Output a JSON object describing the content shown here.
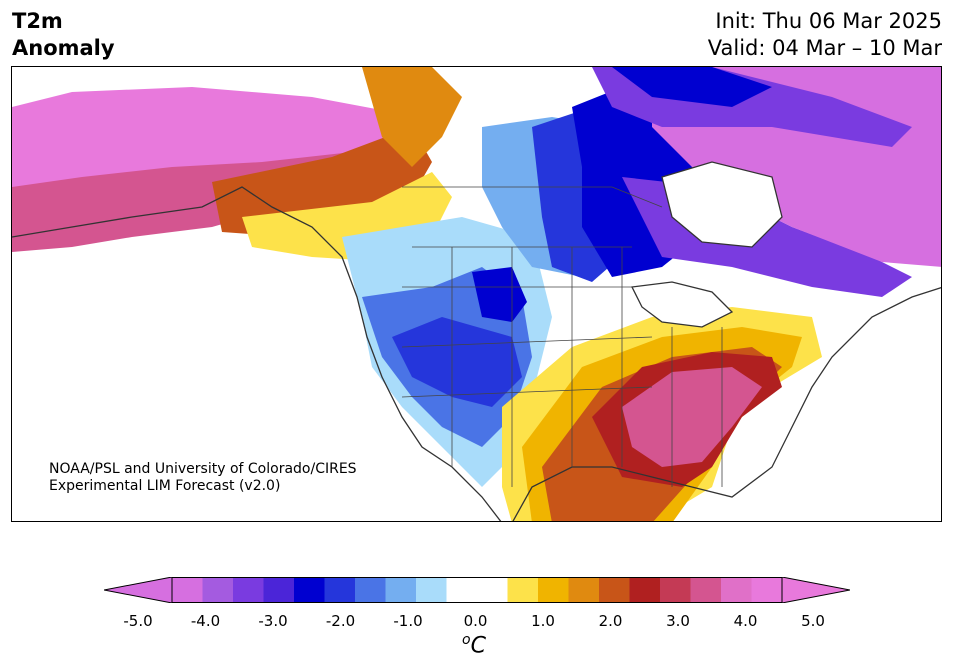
{
  "header": {
    "title_line1": "T2m",
    "title_line2": "Anomaly",
    "init_text": "Init: Thu 06 Mar 2025",
    "valid_text": "Valid: 04 Mar – 10 Mar"
  },
  "map": {
    "region": "North America",
    "credit_line1": "NOAA/PSL and University of Colorado/CIRES",
    "credit_line2": "Experimental LIM Forecast (v2.0)"
  },
  "colorbar": {
    "unit_base": "C",
    "unit_sup": "o",
    "tick_labels": [
      "-5.0",
      "-4.0",
      "-3.0",
      "-2.0",
      "-1.0",
      "0.0",
      "1.0",
      "2.0",
      "3.0",
      "4.0",
      "5.0"
    ],
    "colors": [
      "#d66fe0",
      "#a45be0",
      "#7a3be0",
      "#4b25d8",
      "#0000d0",
      "#2536db",
      "#4a74e6",
      "#74aef0",
      "#a9dcfa",
      "#ffffff",
      "#ffffff",
      "#fde24a",
      "#f0b400",
      "#e08a10",
      "#c85518",
      "#b02020",
      "#c43a55",
      "#d45590",
      "#e070c8",
      "#e879dc"
    ]
  }
}
